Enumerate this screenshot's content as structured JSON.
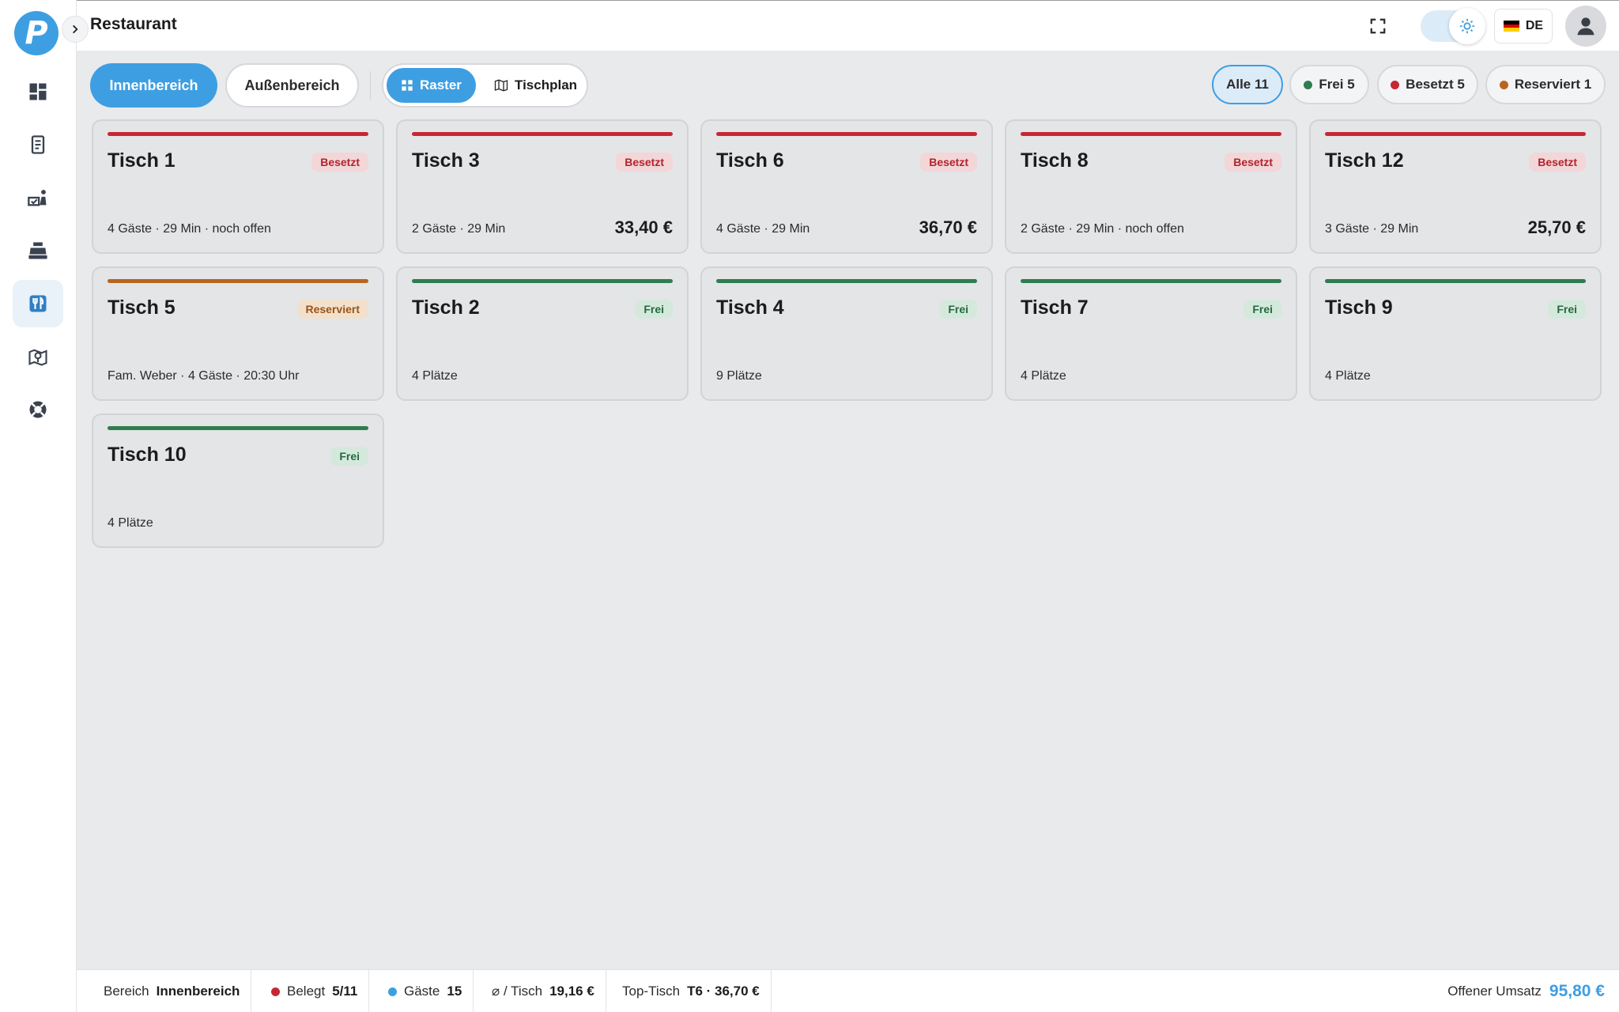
{
  "app": {
    "logo_letter": "P",
    "title": "Restaurant"
  },
  "header": {
    "language": "DE",
    "icons": [
      "fullscreen-icon",
      "sun-icon",
      "user-icon"
    ]
  },
  "sidebar": {
    "items": [
      {
        "name": "dashboard",
        "icon": "dashboard-icon",
        "active": false
      },
      {
        "name": "receipts",
        "icon": "receipt-icon",
        "active": false
      },
      {
        "name": "delivery",
        "icon": "delivery-icon",
        "active": false
      },
      {
        "name": "cashier",
        "icon": "cash-register-icon",
        "active": false
      },
      {
        "name": "restaurant",
        "icon": "cutlery-icon",
        "active": true
      },
      {
        "name": "map",
        "icon": "map-pin-icon",
        "active": false
      },
      {
        "name": "support",
        "icon": "lifebuoy-icon",
        "active": false
      }
    ]
  },
  "toolbar": {
    "areas": [
      {
        "label": "Innenbereich",
        "active": true
      },
      {
        "label": "Außenbereich",
        "active": false
      }
    ],
    "views": [
      {
        "label": "Raster",
        "icon": "grid-icon",
        "active": true
      },
      {
        "label": "Tischplan",
        "icon": "map-icon",
        "active": false
      }
    ],
    "filters": [
      {
        "label": "Alle 11",
        "dot": null,
        "active": true
      },
      {
        "label": "Frei 5",
        "dot": "#2e7d4f",
        "active": false
      },
      {
        "label": "Besetzt 5",
        "dot": "#c62833",
        "active": false
      },
      {
        "label": "Reserviert 1",
        "dot": "#b8651e",
        "active": false
      }
    ]
  },
  "colors": {
    "accent": "#3e9ee2",
    "occupied": "#c62833",
    "free": "#2e7d4f",
    "reserved": "#b8651e"
  },
  "tables": [
    {
      "name": "Tisch 1",
      "status": "occupied",
      "badge": "Besetzt",
      "info": "4 Gäste · 29 Min · noch offen",
      "amount": ""
    },
    {
      "name": "Tisch 3",
      "status": "occupied",
      "badge": "Besetzt",
      "info": "2 Gäste · 29 Min",
      "amount": "33,40 €"
    },
    {
      "name": "Tisch 6",
      "status": "occupied",
      "badge": "Besetzt",
      "info": "4 Gäste · 29 Min",
      "amount": "36,70 €"
    },
    {
      "name": "Tisch 8",
      "status": "occupied",
      "badge": "Besetzt",
      "info": "2 Gäste · 29 Min · noch offen",
      "amount": ""
    },
    {
      "name": "Tisch 12",
      "status": "occupied",
      "badge": "Besetzt",
      "info": "3 Gäste · 29 Min",
      "amount": "25,70 €"
    },
    {
      "name": "Tisch 5",
      "status": "reserved",
      "badge": "Reserviert",
      "info": "Fam. Weber · 4 Gäste · 20:30 Uhr",
      "amount": ""
    },
    {
      "name": "Tisch 2",
      "status": "free",
      "badge": "Frei",
      "info": "4 Plätze",
      "amount": ""
    },
    {
      "name": "Tisch 4",
      "status": "free",
      "badge": "Frei",
      "info": "9 Plätze",
      "amount": ""
    },
    {
      "name": "Tisch 7",
      "status": "free",
      "badge": "Frei",
      "info": "4 Plätze",
      "amount": ""
    },
    {
      "name": "Tisch 9",
      "status": "free",
      "badge": "Frei",
      "info": "4 Plätze",
      "amount": ""
    },
    {
      "name": "Tisch 10",
      "status": "free",
      "badge": "Frei",
      "info": "4 Plätze",
      "amount": ""
    }
  ],
  "statusbar": {
    "area": {
      "label": "Bereich",
      "value": "Innenbereich"
    },
    "occupied": {
      "label": "Belegt",
      "value": "5/11"
    },
    "guests": {
      "label": "Gäste",
      "value": "15"
    },
    "avg": {
      "label": "⌀ / Tisch",
      "value": "19,16 €"
    },
    "top": {
      "label": "Top-Tisch",
      "value": "T6 · 36,70 €"
    },
    "open": {
      "label": "Offener Umsatz",
      "value": "95,80 €"
    }
  }
}
